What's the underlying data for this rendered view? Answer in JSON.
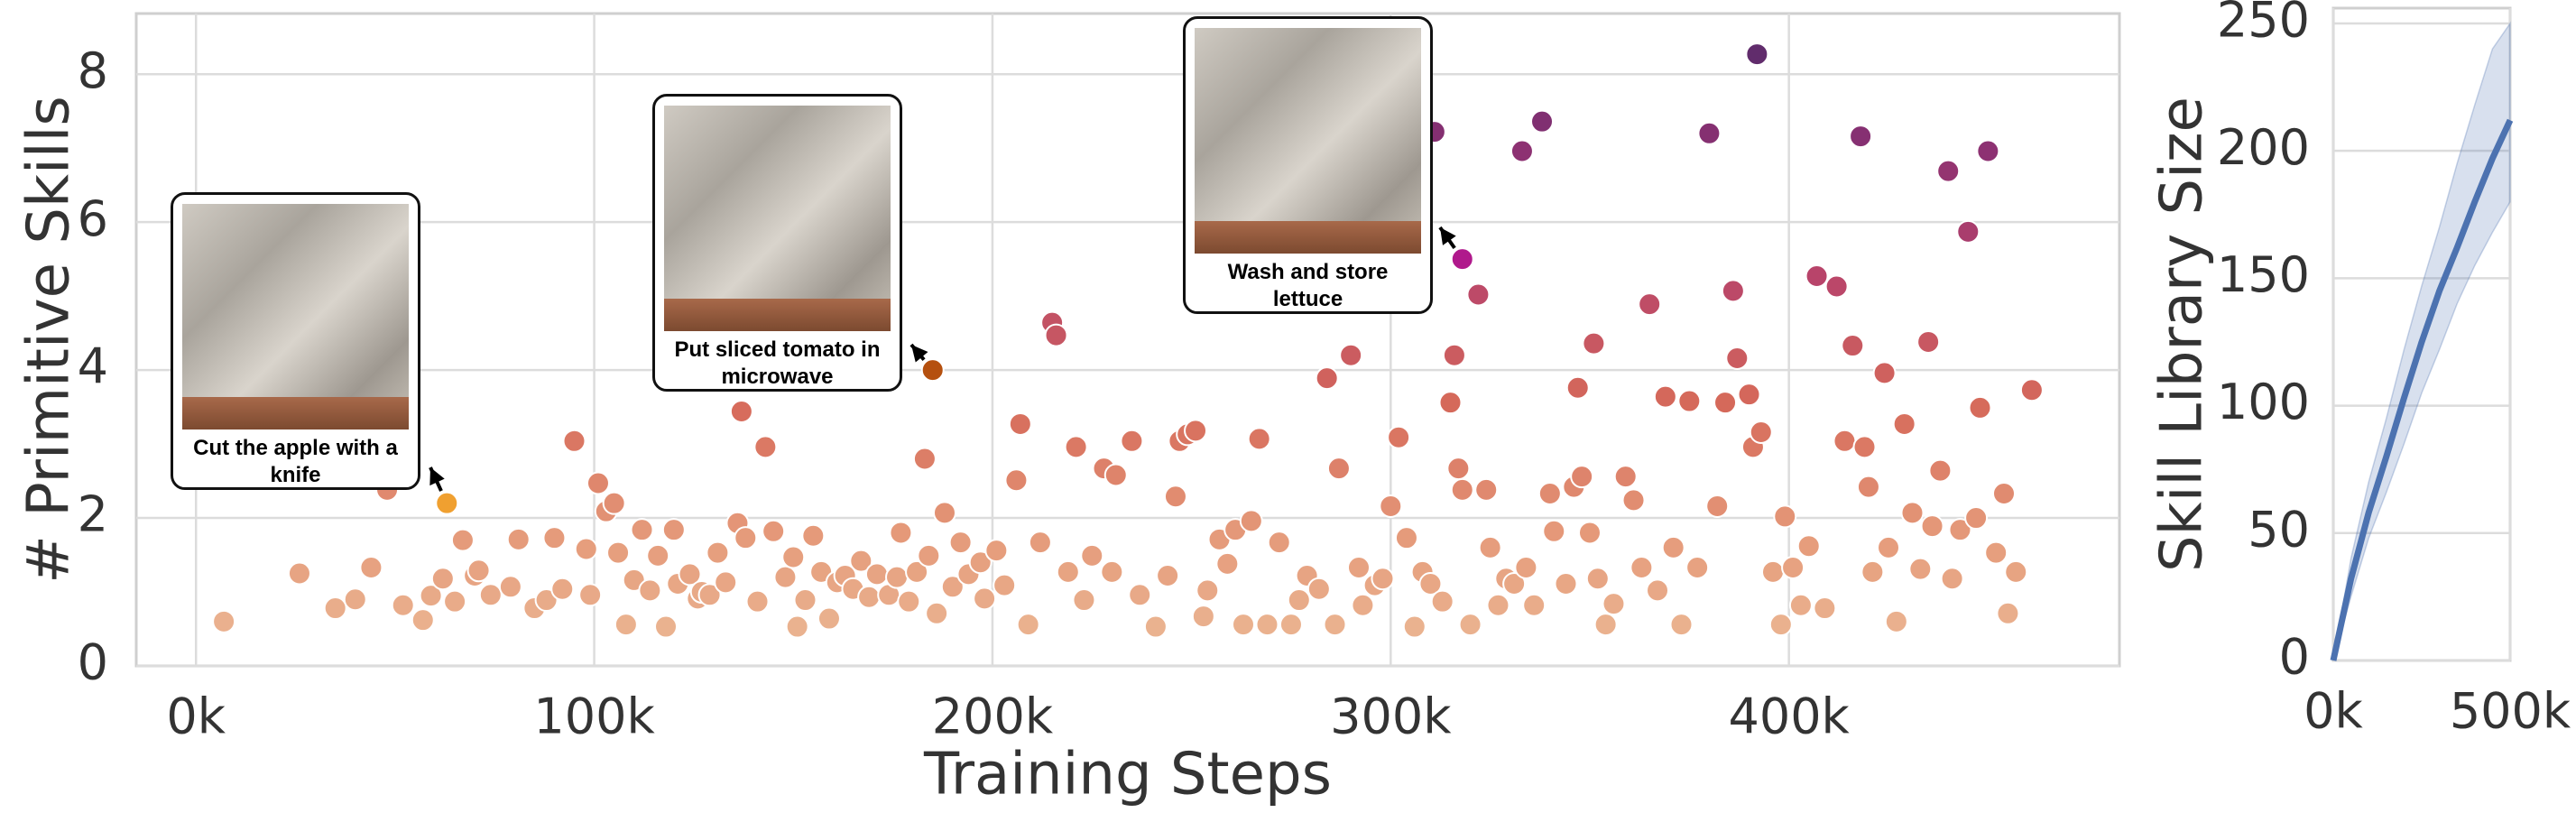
{
  "chart_data": [
    {
      "type": "scatter",
      "xlabel": "Training Steps",
      "ylabel": "# Primitive Skills",
      "x": [
        7000,
        26000,
        35000,
        40000,
        44000,
        48000,
        52000,
        57000,
        59000,
        62000,
        65000,
        67000,
        70000,
        71000,
        74000,
        79000,
        81000,
        85000,
        88000,
        90000,
        92000,
        95000,
        98000,
        99000,
        101000,
        103000,
        105000,
        106000,
        108000,
        110000,
        112000,
        114000,
        116000,
        118000,
        120000,
        121000,
        124000,
        126000,
        127000,
        129000,
        131000,
        133000,
        136000,
        137000,
        138000,
        141000,
        143000,
        145000,
        148000,
        150000,
        151000,
        153000,
        155000,
        157000,
        159000,
        161000,
        163000,
        165000,
        167000,
        169000,
        171000,
        174000,
        176000,
        177000,
        179000,
        181000,
        183000,
        184000,
        186000,
        188000,
        190000,
        192000,
        194000,
        197000,
        198000,
        201000,
        203000,
        206000,
        207000,
        209000,
        212000,
        215000,
        216000,
        219000,
        221000,
        223000,
        225000,
        228000,
        230000,
        231000,
        235000,
        237000,
        241000,
        244000,
        246000,
        247000,
        249000,
        251000,
        253000,
        254000,
        257000,
        259000,
        261000,
        263000,
        265000,
        267000,
        269000,
        272000,
        275000,
        277000,
        279000,
        282000,
        284000,
        286000,
        287000,
        290000,
        292000,
        293000,
        296000,
        298000,
        300000,
        302000,
        304000,
        306000,
        308000,
        310000,
        311000,
        313000,
        315000,
        316000,
        317000,
        318000,
        320000,
        322000,
        324000,
        325000,
        327000,
        329000,
        331000,
        333000,
        334000,
        336000,
        338000,
        340000,
        341000,
        344000,
        346000,
        347000,
        348000,
        350000,
        351000,
        352000,
        354000,
        356000,
        359000,
        361000,
        363000,
        365000,
        367000,
        369000,
        371000,
        373000,
        375000,
        377000,
        380000,
        382000,
        384000,
        386000,
        387000,
        390000,
        391000,
        392000,
        393000,
        396000,
        398000,
        399000,
        401000,
        403000,
        405000,
        407000,
        409000,
        412000,
        414000,
        416000,
        418000,
        419000,
        420000,
        421000,
        424000,
        425000,
        427000,
        429000,
        431000,
        433000,
        435000,
        436000,
        438000,
        440000,
        441000,
        443000,
        445000,
        447000,
        448000,
        450000,
        452000,
        454000,
        455000,
        457000,
        461000
      ],
      "values": [
        0.6,
        1.25,
        0.78,
        0.9,
        1.33,
        2.38,
        0.82,
        0.62,
        0.95,
        1.18,
        0.87,
        1.7,
        1.22,
        1.29,
        0.96,
        1.07,
        1.71,
        0.78,
        0.89,
        1.73,
        1.04,
        3.04,
        1.58,
        0.96,
        2.47,
        2.09,
        2.2,
        1.53,
        0.56,
        1.16,
        1.84,
        1.02,
        1.49,
        0.53,
        1.84,
        1.11,
        1.24,
        0.91,
        1.0,
        0.96,
        1.53,
        1.13,
        1.93,
        3.44,
        1.73,
        0.87,
        2.96,
        1.82,
        1.2,
        1.47,
        0.53,
        0.89,
        1.76,
        1.27,
        0.64,
        1.13,
        1.22,
        1.04,
        1.42,
        0.93,
        1.24,
        0.96,
        1.2,
        1.8,
        0.87,
        1.27,
        2.8,
        1.49,
        0.71,
        2.07,
        1.07,
        1.67,
        1.24,
        1.4,
        0.91,
        1.56,
        1.09,
        2.51,
        3.27,
        0.56,
        1.67,
        4.64,
        4.47,
        1.27,
        2.96,
        0.89,
        1.49,
        2.67,
        1.27,
        2.58,
        3.04,
        0.96,
        0.53,
        1.22,
        2.29,
        3.04,
        3.13,
        3.18,
        0.67,
        1.02,
        1.71,
        1.38,
        1.84,
        0.56,
        1.96,
        3.07,
        0.56,
        1.67,
        0.56,
        0.89,
        1.22,
        1.04,
        3.89,
        0.56,
        2.67,
        4.2,
        1.33,
        0.82,
        1.09,
        1.18,
        2.16,
        3.09,
        1.73,
        0.53,
        1.27,
        1.11,
        7.22,
        0.87,
        3.56,
        4.2,
        2.67,
        2.38,
        0.56,
        5.02,
        2.38,
        1.6,
        0.82,
        1.18,
        1.11,
        6.96,
        1.33,
        0.82,
        7.36,
        2.33,
        1.82,
        1.11,
        2.42,
        3.76,
        2.56,
        1.8,
        4.36,
        1.18,
        0.56,
        0.84,
        2.56,
        2.24,
        1.33,
        4.89,
        1.02,
        3.64,
        1.6,
        0.56,
        3.58,
        1.33,
        7.2,
        2.16,
        3.56,
        5.07,
        4.16,
        3.67,
        2.96,
        8.27,
        3.16,
        1.27,
        0.56,
        2.02,
        1.33,
        0.82,
        1.62,
        5.27,
        0.78,
        5.13,
        3.04,
        4.33,
        7.16,
        2.96,
        2.42,
        1.27,
        3.96,
        1.6,
        0.6,
        3.27,
        2.07,
        1.31,
        4.38,
        1.89,
        2.64,
        6.69,
        1.18,
        1.84,
        5.87,
        2.0,
        3.49,
        6.96,
        1.53,
        2.33,
        0.71,
        1.27,
        3.73
      ],
      "colormap": [
        "#ecbc98",
        "#e59a7a",
        "#d66a5a",
        "#b8446a",
        "#8a3072",
        "#4e2a6a"
      ],
      "annotations": [
        {
          "text": "Cut the apple with a knife",
          "x": 63000,
          "y": 2.2,
          "color": "#f0a030"
        },
        {
          "text": "Put sliced tomato in microwave",
          "x": 185000,
          "y": 4.0,
          "color": "#b5500f"
        },
        {
          "text": "Wash and store lettuce",
          "x": 318000,
          "y": 5.5,
          "color": "#b0198c"
        }
      ],
      "xlim": [
        -15000,
        483000
      ],
      "ylim": [
        0,
        8.82
      ],
      "xticks": [
        {
          "value": 0,
          "label": "0k"
        },
        {
          "value": 100000,
          "label": "100k"
        },
        {
          "value": 200000,
          "label": "200k"
        },
        {
          "value": 300000,
          "label": "300k"
        },
        {
          "value": 400000,
          "label": "400k"
        }
      ],
      "yticks": [
        0,
        2,
        4,
        6,
        8
      ],
      "grid": true
    },
    {
      "type": "line",
      "ylabel": "Skill Library Size",
      "x": [
        0,
        50000,
        100000,
        150000,
        200000,
        250000,
        300000,
        350000,
        400000,
        450000,
        500000
      ],
      "series": [
        {
          "color": "#4c72b0",
          "values": [
            0,
            32,
            58,
            80,
            103,
            125,
            145,
            162,
            180,
            197,
            212
          ],
          "lower": [
            0,
            25,
            48,
            66,
            85,
            105,
            122,
            140,
            155,
            168,
            180
          ],
          "upper": [
            0,
            40,
            70,
            95,
            122,
            147,
            170,
            195,
            218,
            240,
            250
          ]
        }
      ],
      "xlim": [
        0,
        500000
      ],
      "ylim": [
        0,
        256
      ],
      "xticks": [
        {
          "value": 0,
          "label": "0k"
        },
        {
          "value": 500000,
          "label": "500k"
        }
      ],
      "yticks": [
        0,
        50,
        100,
        150,
        200,
        250
      ],
      "grid": true
    }
  ]
}
